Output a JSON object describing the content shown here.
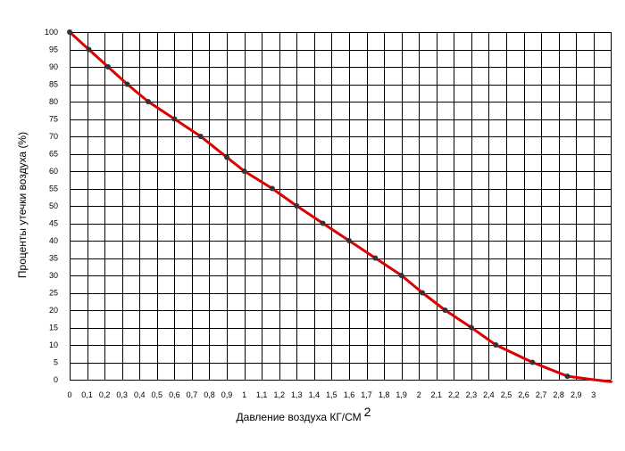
{
  "chart_data": {
    "type": "line",
    "title": "",
    "xlabel": "Давление воздуха КГ/СМ",
    "xlabel_superscript": "2",
    "ylabel": "Проценты утечки воздуха (%)",
    "xlim": [
      0,
      3.1
    ],
    "ylim": [
      0,
      100
    ],
    "grid": true,
    "x_ticks": [
      "0",
      "0,1",
      "0,2",
      "0,3",
      "0,4",
      "0,5",
      "0,6",
      "0,7",
      "0,8",
      "0,9",
      "1",
      "1,1",
      "1,2",
      "1,3",
      "1,4",
      "1,5",
      "1,6",
      "1,7",
      "1,8",
      "1,9",
      "2",
      "2,1",
      "2,2",
      "2,3",
      "2,4",
      "2,5",
      "2,6",
      "2,7",
      "2,8",
      "2,9",
      "3"
    ],
    "y_ticks": [
      "0",
      "5",
      "10",
      "15",
      "20",
      "25",
      "30",
      "35",
      "40",
      "45",
      "50",
      "55",
      "60",
      "65",
      "70",
      "75",
      "80",
      "85",
      "90",
      "95",
      "100"
    ],
    "line_color": "#dd0000",
    "marker_color": "#333333",
    "series": [
      {
        "points": [
          [
            0,
            100
          ],
          [
            0.11,
            95
          ],
          [
            0.22,
            90
          ],
          [
            0.33,
            85
          ],
          [
            0.45,
            80
          ],
          [
            0.6,
            75
          ],
          [
            0.75,
            70
          ],
          [
            0.9,
            64
          ],
          [
            1.0,
            60
          ],
          [
            1.16,
            55
          ],
          [
            1.3,
            50
          ],
          [
            1.45,
            45
          ],
          [
            1.6,
            40
          ],
          [
            1.75,
            35
          ],
          [
            1.9,
            30
          ],
          [
            2.02,
            25
          ],
          [
            2.15,
            20
          ],
          [
            2.3,
            15
          ],
          [
            2.44,
            10
          ],
          [
            2.65,
            5
          ],
          [
            2.85,
            1
          ]
        ],
        "tail": [
          [
            3.0,
            0
          ],
          [
            3.1,
            -0.6
          ]
        ]
      }
    ]
  }
}
